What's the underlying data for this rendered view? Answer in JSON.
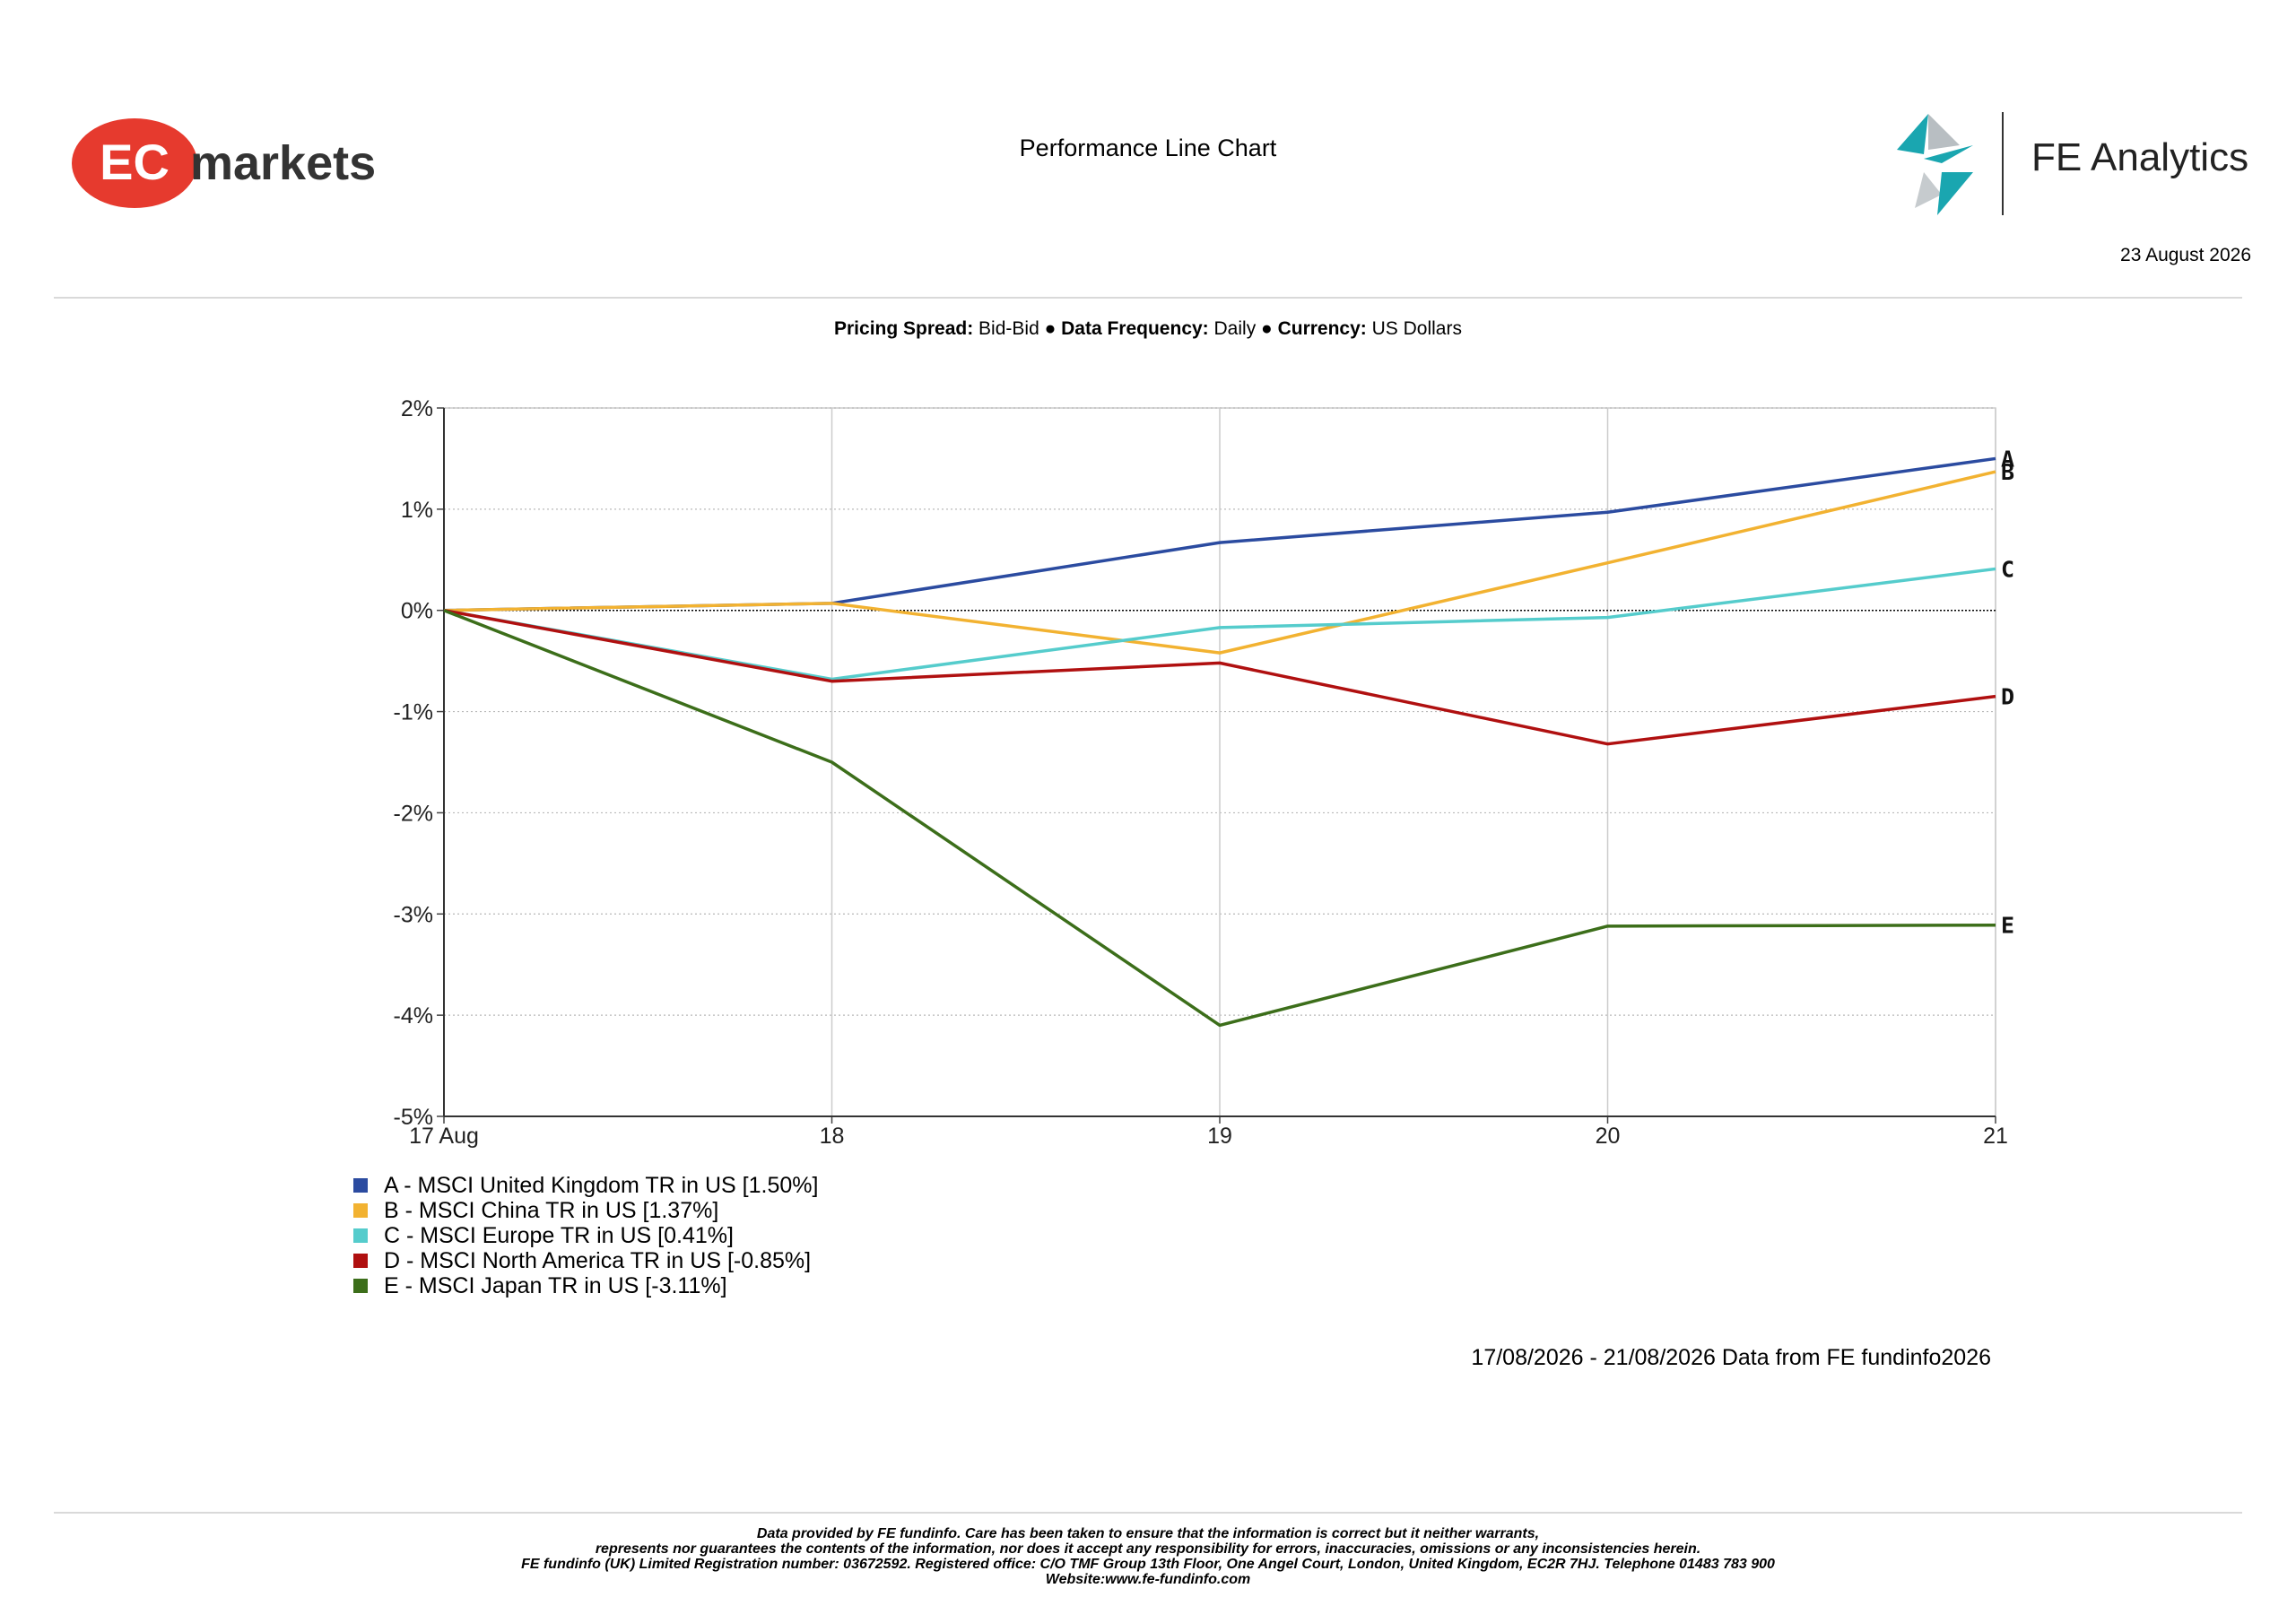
{
  "header": {
    "title": "Performance Line Chart",
    "date": "23 August 2026",
    "logo_left_text": "markets",
    "logo_left_badge": "EC",
    "logo_right_text": "FE Analytics"
  },
  "meta": {
    "pricing_label": "Pricing Spread:",
    "pricing_value": "Bid-Bid",
    "sep1": "●",
    "frequency_label": "Data Frequency:",
    "frequency_value": "Daily",
    "sep2": "●",
    "currency_label": "Currency:",
    "currency_value": "US Dollars"
  },
  "chart_data": {
    "type": "line",
    "x": [
      "17 Aug",
      "18",
      "19",
      "20",
      "21"
    ],
    "ylim": [
      -5,
      2
    ],
    "yticks": [
      2,
      1,
      0,
      -1,
      -2,
      -3,
      -4,
      -5
    ],
    "ytick_labels": [
      "2%",
      "1%",
      "0%",
      "-1%",
      "-2%",
      "-3%",
      "-4%",
      "-5%"
    ],
    "grid": true,
    "series": [
      {
        "name": "A - MSCI United Kingdom TR in US [1.50%]",
        "label": "A",
        "color": "#2B4BA0",
        "values": [
          0,
          0.07,
          0.67,
          0.97,
          1.5
        ]
      },
      {
        "name": "B - MSCI China TR in US [1.37%]",
        "label": "B",
        "color": "#F2B231",
        "values": [
          0,
          0.07,
          -0.42,
          0.47,
          1.37
        ]
      },
      {
        "name": "C - MSCI Europe TR in US [0.41%]",
        "label": "C",
        "color": "#55CCCC",
        "values": [
          0,
          -0.68,
          -0.17,
          -0.07,
          0.41
        ]
      },
      {
        "name": "D - MSCI North America TR in US [-0.85%]",
        "label": "D",
        "color": "#B01010",
        "values": [
          0,
          -0.7,
          -0.52,
          -1.32,
          -0.85
        ]
      },
      {
        "name": "E - MSCI Japan TR in US [-3.11%]",
        "label": "E",
        "color": "#3C6E1A",
        "values": [
          0,
          -1.5,
          -4.1,
          -3.12,
          -3.11
        ]
      }
    ]
  },
  "source_note": "17/08/2026 - 21/08/2026 Data from FE fundinfo2026",
  "disclaimer": [
    "Data provided by FE fundinfo. Care has been taken to ensure that the information is correct but it neither warrants,",
    "represents nor guarantees the contents of the information, nor does it accept any responsibility for errors, inaccuracies, omissions or any inconsistencies herein.",
    "FE fundinfo (UK) Limited Registration number: 03672592. Registered office: C/O TMF Group 13th Floor, One Angel Court, London, United Kingdom, EC2R 7HJ. Telephone 01483 783 900",
    "Website:www.fe-fundinfo.com"
  ]
}
